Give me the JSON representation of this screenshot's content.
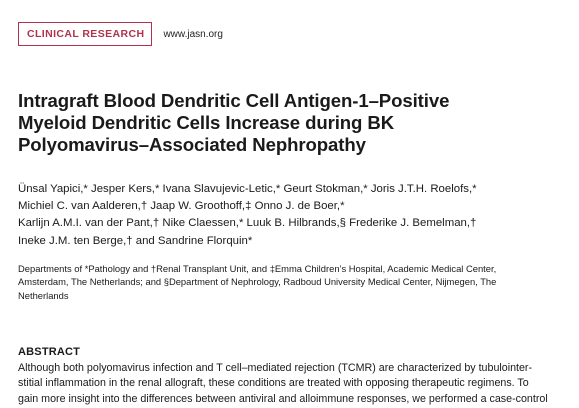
{
  "header": {
    "section_label": "CLINICAL RESEARCH",
    "journal_url": "www.jasn.org"
  },
  "article": {
    "title_lines": [
      "Intragraft Blood Dendritic Cell Antigen-1–Positive",
      "Myeloid Dendritic Cells Increase during BK",
      "Polyomavirus–Associated Nephropathy"
    ],
    "author_lines": [
      "Ünsal Yapici,* Jesper Kers,* Ivana Slavujevic-Letic,* Geurt Stokman,* Joris J.T.H. Roelofs,*",
      "Michiel C. van Aalderen,† Jaap W. Groothoff,‡ Onno J. de Boer,*",
      "Karlijn A.M.I. van der Pant,† Nike Claessen,* Luuk B. Hilbrands,§ Frederike J. Bemelman,†",
      "Ineke J.M. ten Berge,† and Sandrine Florquin*"
    ],
    "affiliation_lines": [
      "Departments of *Pathology and †Renal Transplant Unit, and ‡Emma Children’s Hospital, Academic Medical Center,",
      "Amsterdam, The Netherlands; and §Department of Nephrology, Radboud University Medical Center, Nijmegen, The",
      "Netherlands"
    ],
    "abstract_heading": "ABSTRACT",
    "abstract_lines": [
      "Although both polyomavirus infection and T cell–mediated rejection (TCMR) are characterized by tubulointer-",
      "stitial inflammation in the renal allograft, these conditions are treated with opposing therapeutic regimens. To",
      "gain more insight into the differences between antiviral and alloimmune responses, we performed a case-control"
    ]
  },
  "colors": {
    "section_badge": "#b2324b",
    "text": "#1a1a1a"
  }
}
